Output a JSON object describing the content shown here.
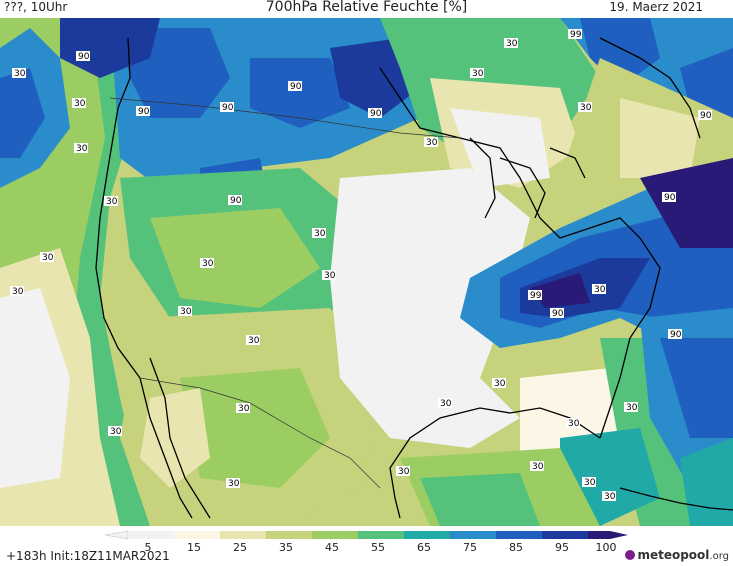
{
  "header": {
    "left": "???, 10Uhr",
    "title": "700hPa Relative Feuchte [%]",
    "date": "19. Maerz 2021"
  },
  "map": {
    "contour_labels": [
      "90",
      "30",
      "30",
      "90",
      "90",
      "90",
      "90",
      "30",
      "99",
      "30",
      "30",
      "90",
      "90",
      "30",
      "30",
      "30",
      "90",
      "30",
      "30",
      "99",
      "90",
      "30",
      "30",
      "30",
      "30",
      "30",
      "30",
      "30",
      "30",
      "30",
      "30",
      "90",
      "30",
      "30",
      "30",
      "30",
      "30",
      "30",
      "30"
    ]
  },
  "legend": {
    "ticks": [
      "5",
      "15",
      "25",
      "35",
      "45",
      "55",
      "65",
      "75",
      "85",
      "95",
      "100"
    ],
    "colors": [
      "#f2f2f2",
      "#fbf6e6",
      "#e9e5b0",
      "#c6d27c",
      "#9ccd63",
      "#55c27c",
      "#21a9a8",
      "#2b8ccc",
      "#1f5fbf",
      "#1b3a9c",
      "#2a1a78"
    ]
  },
  "footer": {
    "forecast": "+183h  Init:18Z11MAR2021",
    "brand_main": "meteopool",
    "brand_suffix": ".org"
  }
}
